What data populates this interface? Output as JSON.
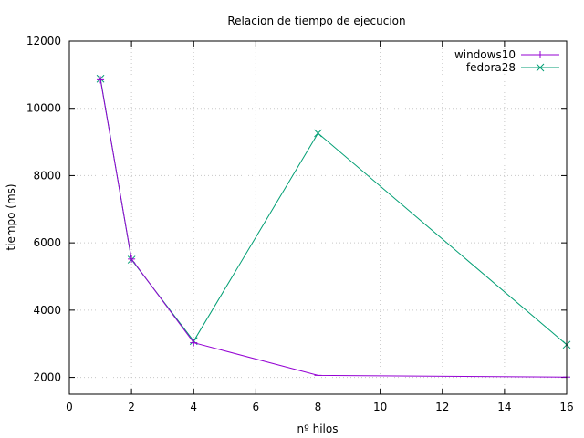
{
  "chart_data": {
    "type": "line",
    "title": "Relacion de tiempo de ejecucion",
    "xlabel": "nº hilos",
    "ylabel": "tiempo (ms)",
    "xlim": [
      0,
      16
    ],
    "ylim": [
      1500,
      12000
    ],
    "xticks": [
      0,
      2,
      4,
      6,
      8,
      10,
      12,
      14,
      16
    ],
    "yticks": [
      2000,
      4000,
      6000,
      8000,
      10000,
      12000
    ],
    "grid": true,
    "legend_position": "top-right",
    "series": [
      {
        "name": "windows10",
        "color": "#9400d3",
        "marker": "plus",
        "x": [
          1,
          2,
          4,
          8,
          16
        ],
        "y": [
          10850,
          5520,
          3030,
          2060,
          2010
        ]
      },
      {
        "name": "fedora28",
        "color": "#009e73",
        "marker": "cross",
        "x": [
          1,
          2,
          4,
          8,
          16
        ],
        "y": [
          10880,
          5500,
          3080,
          9260,
          2970
        ]
      }
    ]
  }
}
